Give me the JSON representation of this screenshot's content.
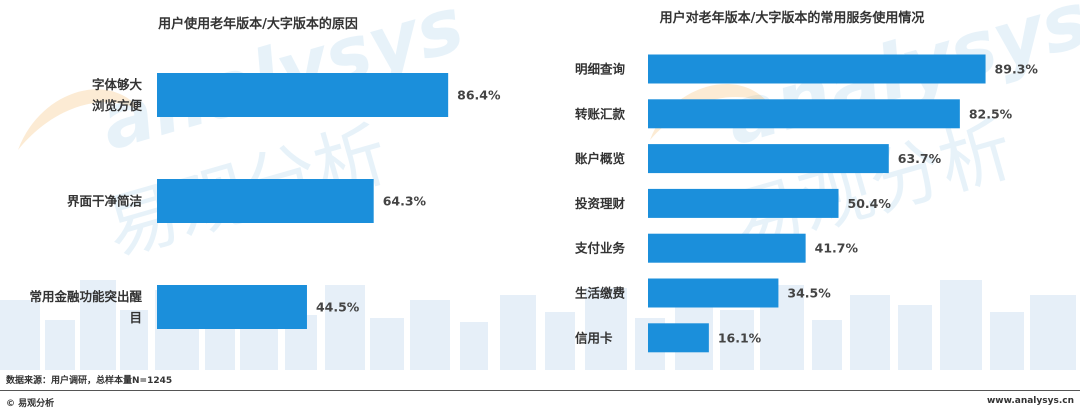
{
  "watermark": {
    "latin": "analysys",
    "cjk": "易观分析",
    "color": "#f3a63b",
    "text_color": "#4da3d9"
  },
  "colors": {
    "bar": "#1b8fdb",
    "skyline": "#e6eff8"
  },
  "chart_data": [
    {
      "type": "bar",
      "orientation": "horizontal",
      "title": "用户使用老年版本/大字版本的原因",
      "categories": [
        [
          "字体够大",
          "浏览方便"
        ],
        [
          "界面干净简洁"
        ],
        [
          "常用金融功能突出醒",
          "目"
        ]
      ],
      "values": [
        86.4,
        64.3,
        44.5
      ],
      "value_labels": [
        "86.4%",
        "64.3%",
        "44.5%"
      ],
      "unit": "%",
      "xlim": [
        0,
        100
      ],
      "grid": false,
      "legend": "none"
    },
    {
      "type": "bar",
      "orientation": "horizontal",
      "title": "用户对老年版本/大字版本的常用服务使用情况",
      "categories": [
        [
          "明细查询"
        ],
        [
          "转账汇款"
        ],
        [
          "账户概览"
        ],
        [
          "投资理财"
        ],
        [
          "支付业务"
        ],
        [
          "生活缴费"
        ],
        [
          "信用卡"
        ]
      ],
      "values": [
        89.3,
        82.5,
        63.7,
        50.4,
        41.7,
        34.5,
        16.1
      ],
      "value_labels": [
        "89.3%",
        "82.5%",
        "63.7%",
        "50.4%",
        "41.7%",
        "34.5%",
        "16.1%"
      ],
      "unit": "%",
      "xlim": [
        0,
        100
      ],
      "grid": false,
      "legend": "none"
    }
  ],
  "footer": {
    "source": "数据来源：用户调研，总样本量N=1245",
    "copyright": "© 易观分析",
    "website": "www.analysys.cn"
  }
}
